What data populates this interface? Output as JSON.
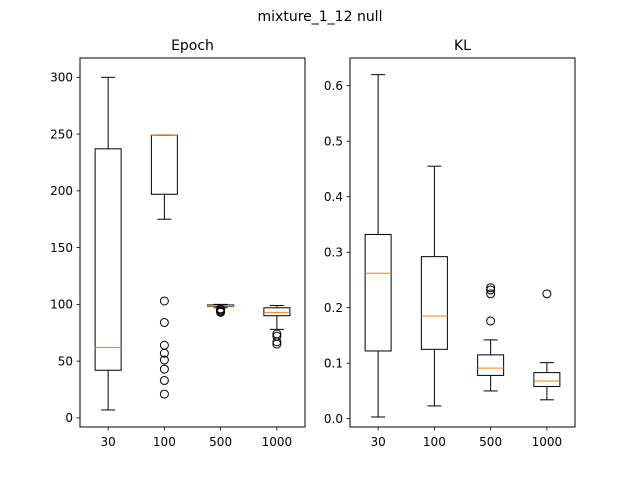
{
  "figure": {
    "suptitle": "mixture_1_12 null"
  },
  "colors": {
    "box": "#000000",
    "median": "#ff7f0e",
    "background": "#ffffff"
  },
  "chart_data": [
    {
      "type": "box",
      "title": "Epoch",
      "categories": [
        "30",
        "100",
        "500",
        "1000"
      ],
      "ylim": [
        -8,
        317
      ],
      "yticks": [
        0,
        50,
        100,
        150,
        200,
        250,
        300
      ],
      "ytick_labels": [
        "0",
        "50",
        "100",
        "150",
        "200",
        "250",
        "300"
      ],
      "boxes": [
        {
          "whisker_low": 7,
          "q1": 42,
          "median": 62,
          "q3": 237,
          "whisker_high": 300,
          "fliers": []
        },
        {
          "whisker_low": 175,
          "q1": 197,
          "median": 249,
          "q3": 249,
          "whisker_high": 249,
          "fliers": [
            103,
            84,
            64,
            57,
            51,
            43,
            33,
            21
          ]
        },
        {
          "whisker_low": 97,
          "q1": 98.5,
          "median": 99,
          "q3": 99.5,
          "whisker_high": 100,
          "fliers": [
            96,
            95,
            94,
            93
          ]
        },
        {
          "whisker_low": 78,
          "q1": 90,
          "median": 93,
          "q3": 97,
          "whisker_high": 99,
          "fliers": [
            74,
            72,
            67,
            65
          ]
        }
      ]
    },
    {
      "type": "box",
      "title": "KL",
      "categories": [
        "30",
        "100",
        "500",
        "1000"
      ],
      "ylim": [
        -0.015,
        0.65
      ],
      "yticks": [
        0.0,
        0.1,
        0.2,
        0.3,
        0.4,
        0.5,
        0.6
      ],
      "ytick_labels": [
        "0.0",
        "0.1",
        "0.2",
        "0.3",
        "0.4",
        "0.5",
        "0.6"
      ],
      "boxes": [
        {
          "whisker_low": 0.003,
          "q1": 0.122,
          "median": 0.262,
          "q3": 0.332,
          "whisker_high": 0.62,
          "fliers": []
        },
        {
          "whisker_low": 0.023,
          "q1": 0.125,
          "median": 0.185,
          "q3": 0.292,
          "whisker_high": 0.455,
          "fliers": []
        },
        {
          "whisker_low": 0.05,
          "q1": 0.078,
          "median": 0.091,
          "q3": 0.115,
          "whisker_high": 0.142,
          "fliers": [
            0.236,
            0.232,
            0.225,
            0.176
          ]
        },
        {
          "whisker_low": 0.034,
          "q1": 0.058,
          "median": 0.068,
          "q3": 0.083,
          "whisker_high": 0.101,
          "fliers": [
            0.225
          ]
        }
      ]
    }
  ]
}
